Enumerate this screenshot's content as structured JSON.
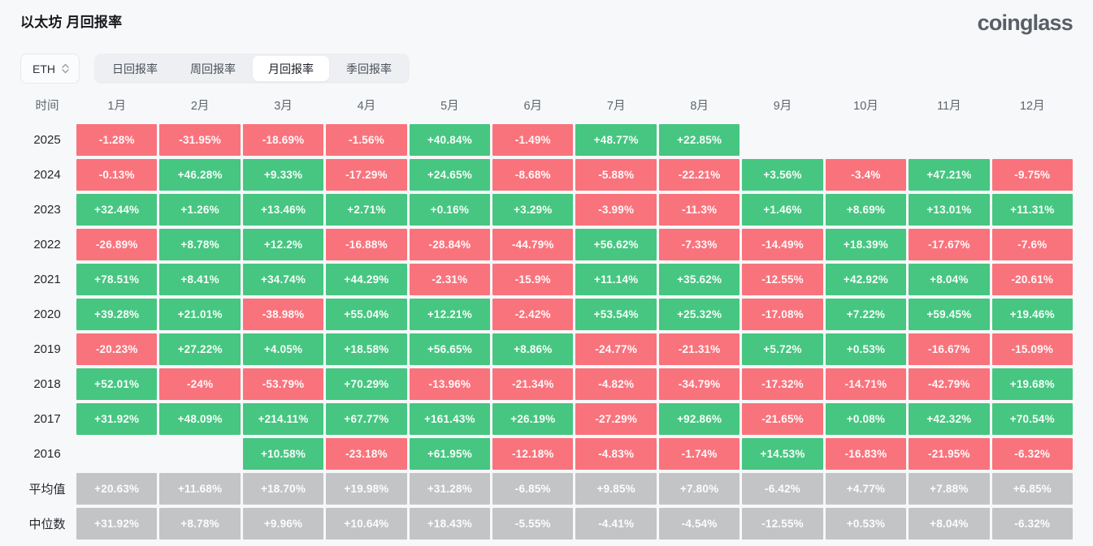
{
  "header": {
    "title": "以太坊 月回报率",
    "logo": "coinglass"
  },
  "controls": {
    "coin_select": {
      "value": "ETH",
      "icon": "updown-chevron-icon"
    },
    "tabs": [
      {
        "label": "日回报率",
        "active": false
      },
      {
        "label": "周回报率",
        "active": false
      },
      {
        "label": "月回报率",
        "active": true
      },
      {
        "label": "季回报率",
        "active": false
      }
    ]
  },
  "chart_data": {
    "type": "heatmap",
    "title": "以太坊 月回报率",
    "row_header": "时间",
    "columns": [
      "1月",
      "2月",
      "3月",
      "4月",
      "5月",
      "6月",
      "7月",
      "8月",
      "9月",
      "10月",
      "11月",
      "12月"
    ],
    "rows": [
      {
        "label": "2025",
        "kind": "year",
        "values": [
          "-1.28%",
          "-31.95%",
          "-18.69%",
          "-1.56%",
          "+40.84%",
          "-1.49%",
          "+48.77%",
          "+22.85%",
          "",
          "",
          "",
          ""
        ]
      },
      {
        "label": "2024",
        "kind": "year",
        "values": [
          "-0.13%",
          "+46.28%",
          "+9.33%",
          "-17.29%",
          "+24.65%",
          "-8.68%",
          "-5.88%",
          "-22.21%",
          "+3.56%",
          "-3.4%",
          "+47.21%",
          "-9.75%"
        ]
      },
      {
        "label": "2023",
        "kind": "year",
        "values": [
          "+32.44%",
          "+1.26%",
          "+13.46%",
          "+2.71%",
          "+0.16%",
          "+3.29%",
          "-3.99%",
          "-11.3%",
          "+1.46%",
          "+8.69%",
          "+13.01%",
          "+11.31%"
        ]
      },
      {
        "label": "2022",
        "kind": "year",
        "values": [
          "-26.89%",
          "+8.78%",
          "+12.2%",
          "-16.88%",
          "-28.84%",
          "-44.79%",
          "+56.62%",
          "-7.33%",
          "-14.49%",
          "+18.39%",
          "-17.67%",
          "-7.6%"
        ]
      },
      {
        "label": "2021",
        "kind": "year",
        "values": [
          "+78.51%",
          "+8.41%",
          "+34.74%",
          "+44.29%",
          "-2.31%",
          "-15.9%",
          "+11.14%",
          "+35.62%",
          "-12.55%",
          "+42.92%",
          "+8.04%",
          "-20.61%"
        ]
      },
      {
        "label": "2020",
        "kind": "year",
        "values": [
          "+39.28%",
          "+21.01%",
          "-38.98%",
          "+55.04%",
          "+12.21%",
          "-2.42%",
          "+53.54%",
          "+25.32%",
          "-17.08%",
          "+7.22%",
          "+59.45%",
          "+19.46%"
        ]
      },
      {
        "label": "2019",
        "kind": "year",
        "values": [
          "-20.23%",
          "+27.22%",
          "+4.05%",
          "+18.58%",
          "+56.65%",
          "+8.86%",
          "-24.77%",
          "-21.31%",
          "+5.72%",
          "+0.53%",
          "-16.67%",
          "-15.09%"
        ]
      },
      {
        "label": "2018",
        "kind": "year",
        "values": [
          "+52.01%",
          "-24%",
          "-53.79%",
          "+70.29%",
          "-13.96%",
          "-21.34%",
          "-4.82%",
          "-34.79%",
          "-17.32%",
          "-14.71%",
          "-42.79%",
          "+19.68%"
        ]
      },
      {
        "label": "2017",
        "kind": "year",
        "values": [
          "+31.92%",
          "+48.09%",
          "+214.11%",
          "+67.77%",
          "+161.43%",
          "+26.19%",
          "-27.29%",
          "+92.86%",
          "-21.65%",
          "+0.08%",
          "+42.32%",
          "+70.54%"
        ]
      },
      {
        "label": "2016",
        "kind": "year",
        "values": [
          "",
          "",
          "+10.58%",
          "-23.18%",
          "+61.95%",
          "-12.18%",
          "-4.83%",
          "-1.74%",
          "+14.53%",
          "-16.83%",
          "-21.95%",
          "-6.32%"
        ]
      },
      {
        "label": "平均值",
        "kind": "summary",
        "values": [
          "+20.63%",
          "+11.68%",
          "+18.70%",
          "+19.98%",
          "+31.28%",
          "-6.85%",
          "+9.85%",
          "+7.80%",
          "-6.42%",
          "+4.77%",
          "+7.88%",
          "+6.85%"
        ]
      },
      {
        "label": "中位数",
        "kind": "summary",
        "values": [
          "+31.92%",
          "+8.78%",
          "+9.96%",
          "+10.64%",
          "+18.43%",
          "-5.55%",
          "-4.41%",
          "-4.54%",
          "-12.55%",
          "+0.53%",
          "+8.04%",
          "-6.32%"
        ]
      }
    ],
    "colors": {
      "positive": "#46c681",
      "negative": "#f9737c",
      "summary": "#c3c4c6",
      "background": "#f7f8f9"
    },
    "legend_position": "none"
  }
}
